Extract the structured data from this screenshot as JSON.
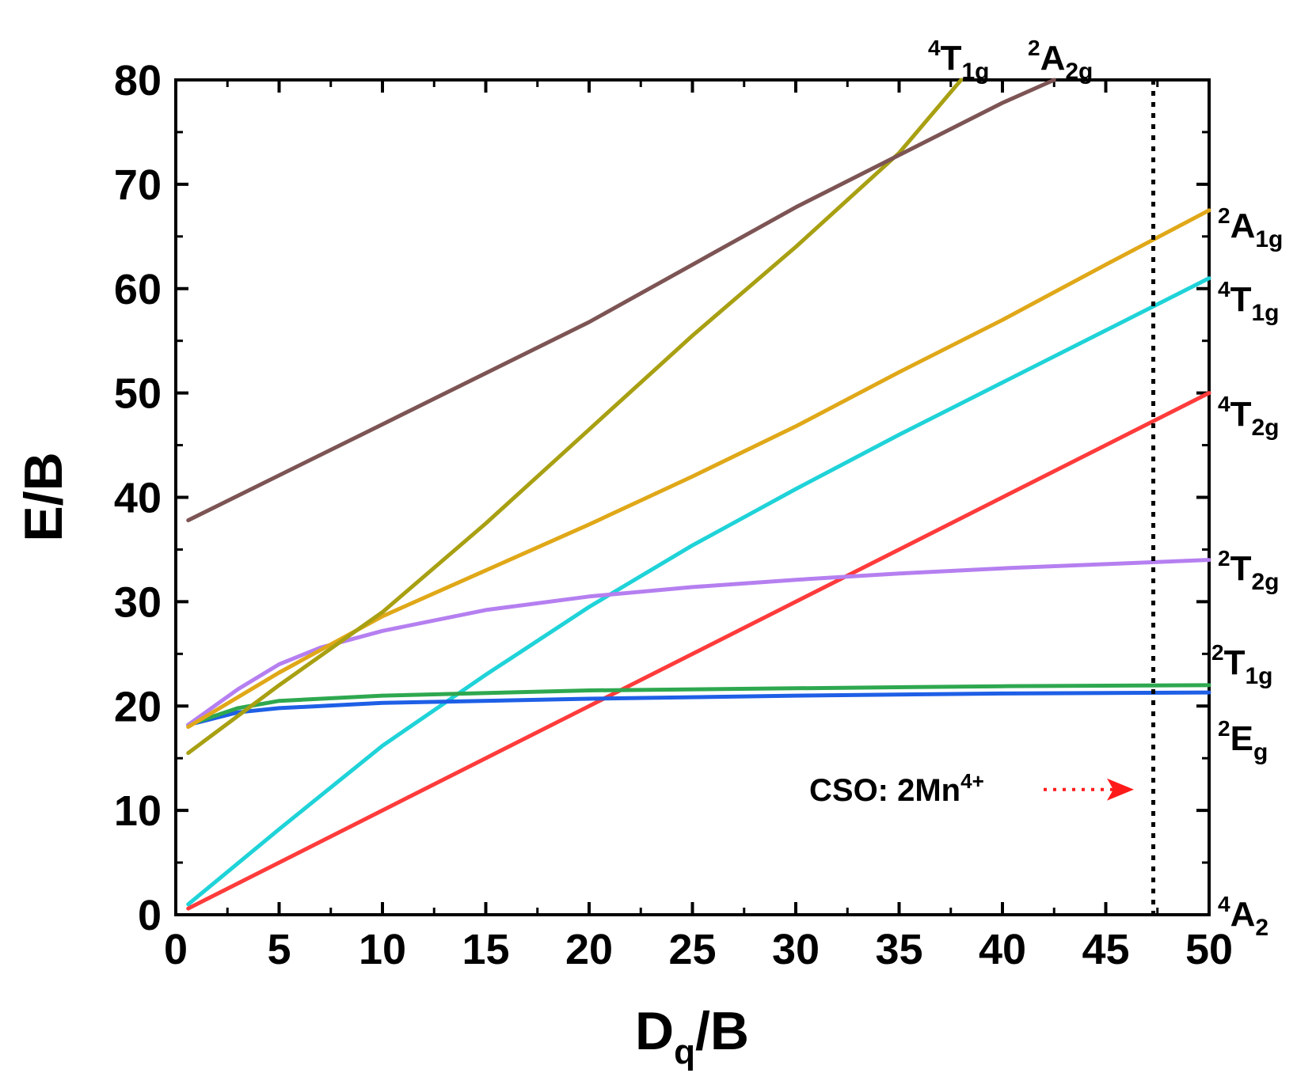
{
  "chart_data": {
    "type": "line",
    "title": "",
    "xlabel": {
      "main": "D",
      "sub": "q",
      "rest": "/B"
    },
    "ylabel": "E/B",
    "xlim": [
      0,
      50
    ],
    "ylim": [
      0,
      80
    ],
    "xticks": [
      "0",
      "5",
      "10",
      "15",
      "20",
      "25",
      "30",
      "35",
      "40",
      "45",
      "50"
    ],
    "yticks": [
      "0",
      "10",
      "20",
      "30",
      "40",
      "50",
      "60",
      "70",
      "80"
    ],
    "grid": false,
    "series": [
      {
        "name": "4A2",
        "label": {
          "sup": "4",
          "main": "A",
          "sub": "2"
        },
        "color": "#000000",
        "points": [
          [
            0.6,
            0
          ],
          [
            50,
            0
          ]
        ]
      },
      {
        "name": "4T2g",
        "label": {
          "sup": "4",
          "main": "T",
          "sub": "2g"
        },
        "color": "#ff3b3b",
        "points": [
          [
            0.6,
            0.6
          ],
          [
            10,
            10
          ],
          [
            20,
            20
          ],
          [
            30,
            30
          ],
          [
            40,
            40
          ],
          [
            50,
            50
          ]
        ]
      },
      {
        "name": "4T1g (lower)",
        "label": {
          "sup": "4",
          "main": "T",
          "sub": "1g"
        },
        "color": "#1fd3d8",
        "points": [
          [
            0.6,
            1.0
          ],
          [
            5,
            8.2
          ],
          [
            10,
            16.2
          ],
          [
            15,
            23.0
          ],
          [
            20,
            29.5
          ],
          [
            25,
            35.4
          ],
          [
            30,
            40.8
          ],
          [
            35,
            46.0
          ],
          [
            40,
            51.0
          ],
          [
            45,
            56.0
          ],
          [
            50,
            61.0
          ]
        ]
      },
      {
        "name": "2Eg",
        "label": {
          "sup": "2",
          "main": "E",
          "sub": "g"
        },
        "color": "#1e5fe6",
        "points": [
          [
            0.6,
            18.2
          ],
          [
            3,
            19.4
          ],
          [
            5,
            19.8
          ],
          [
            10,
            20.3
          ],
          [
            20,
            20.7
          ],
          [
            30,
            21.0
          ],
          [
            40,
            21.2
          ],
          [
            50,
            21.3
          ]
        ]
      },
      {
        "name": "2T1g",
        "label": {
          "sup": "2",
          "main": "T",
          "sub": "1g"
        },
        "color": "#2ea84f",
        "points": [
          [
            0.6,
            18.2
          ],
          [
            3,
            19.8
          ],
          [
            5,
            20.5
          ],
          [
            10,
            21.0
          ],
          [
            20,
            21.5
          ],
          [
            30,
            21.7
          ],
          [
            40,
            21.9
          ],
          [
            50,
            22.0
          ]
        ]
      },
      {
        "name": "2T2g",
        "label": {
          "sup": "2",
          "main": "T",
          "sub": "2g"
        },
        "color": "#b57ff0",
        "points": [
          [
            0.6,
            18.2
          ],
          [
            3,
            21.6
          ],
          [
            5,
            24.0
          ],
          [
            7,
            25.6
          ],
          [
            10,
            27.2
          ],
          [
            15,
            29.2
          ],
          [
            20,
            30.5
          ],
          [
            25,
            31.4
          ],
          [
            30,
            32.1
          ],
          [
            35,
            32.7
          ],
          [
            40,
            33.2
          ],
          [
            45,
            33.6
          ],
          [
            50,
            34.0
          ]
        ]
      },
      {
        "name": "2A1g",
        "label": {
          "sup": "2",
          "main": "A",
          "sub": "1g"
        },
        "color": "#e0a818",
        "points": [
          [
            0.6,
            18.0
          ],
          [
            5,
            23.2
          ],
          [
            10,
            28.6
          ],
          [
            15,
            33.0
          ],
          [
            20,
            37.4
          ],
          [
            25,
            42.0
          ],
          [
            30,
            46.8
          ],
          [
            35,
            52.0
          ],
          [
            40,
            57.0
          ],
          [
            45,
            62.3
          ],
          [
            50,
            67.5
          ]
        ]
      },
      {
        "name": "4T1g (upper)",
        "label": {
          "sup": "4",
          "main": "T",
          "sub": "1g"
        },
        "color": "#a8a012",
        "points": [
          [
            0.6,
            15.5
          ],
          [
            5,
            22.0
          ],
          [
            10,
            29.0
          ],
          [
            15,
            37.5
          ],
          [
            20,
            46.5
          ],
          [
            25,
            55.5
          ],
          [
            30,
            64.0
          ],
          [
            35,
            73.0
          ],
          [
            38,
            80.0
          ]
        ]
      },
      {
        "name": "2A2g",
        "label": {
          "sup": "2",
          "main": "A",
          "sub": "2g"
        },
        "color": "#7d5454",
        "points": [
          [
            0.6,
            37.8
          ],
          [
            10,
            47.0
          ],
          [
            20,
            56.8
          ],
          [
            30,
            67.8
          ],
          [
            40,
            77.8
          ],
          [
            42.5,
            80
          ]
        ]
      }
    ],
    "marker_line": {
      "x": 47.3,
      "style": "dotted",
      "color": "#000000"
    },
    "annotation": {
      "text": "CSO: 2Mn",
      "sup": "4+",
      "arrow_color": "#ff1a1a",
      "y": 12
    }
  }
}
